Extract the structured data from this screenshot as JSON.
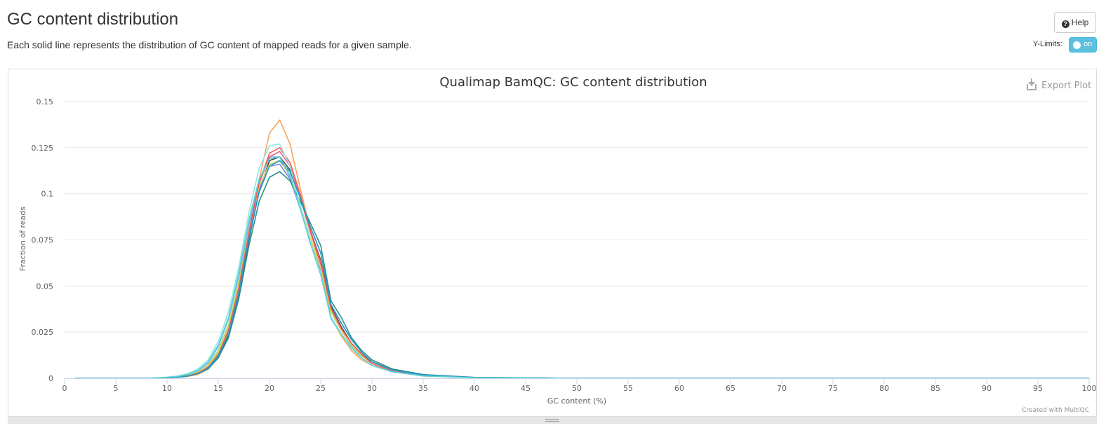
{
  "header": {
    "title": "GC content distribution",
    "subtitle": "Each solid line represents the distribution of GC content of mapped reads for a given sample.",
    "help_label": "Help",
    "ylimits_label": "Y-Limits:",
    "toggle_label": "on"
  },
  "plot": {
    "export_label": "Export Plot",
    "credit": "Created with MultiQC"
  },
  "chart_data": {
    "type": "line",
    "title": "Qualimap BamQC: GC content distribution",
    "xlabel": "GC content (%)",
    "ylabel": "Fraction of reads",
    "xlim": [
      0,
      100
    ],
    "ylim": [
      0,
      0.15
    ],
    "xticks": [
      0,
      5,
      10,
      15,
      20,
      25,
      30,
      35,
      40,
      45,
      50,
      55,
      60,
      65,
      70,
      75,
      80,
      85,
      90,
      95,
      100
    ],
    "yticks": [
      0,
      0.025,
      0.05,
      0.075,
      0.1,
      0.125,
      0.15
    ],
    "ytick_labels": [
      "0",
      "0.025",
      "0.05",
      "0.075",
      "0.1",
      "0.125",
      "0.15"
    ],
    "grid": true,
    "series": [
      {
        "color": "#f7a35c",
        "x": [
          1,
          8,
          10,
          11,
          12,
          13,
          14,
          15,
          16,
          17,
          18,
          19,
          20,
          21,
          22,
          23,
          24,
          25,
          26,
          27,
          28,
          29,
          30,
          32,
          35,
          40,
          50,
          70,
          100
        ],
        "y": [
          0,
          0,
          0.0003,
          0.0006,
          0.001,
          0.002,
          0.005,
          0.012,
          0.025,
          0.048,
          0.078,
          0.108,
          0.133,
          0.14,
          0.127,
          0.103,
          0.08,
          0.06,
          0.033,
          0.023,
          0.015,
          0.01,
          0.007,
          0.0035,
          0.0012,
          0.0003,
          0,
          0,
          0
        ]
      },
      {
        "color": "#7cb5ec",
        "x": [
          1,
          8,
          10,
          11,
          12,
          13,
          14,
          15,
          16,
          17,
          18,
          19,
          20,
          21,
          22,
          23,
          24,
          25,
          26,
          27,
          28,
          29,
          30,
          32,
          35,
          40,
          50,
          70,
          100
        ],
        "y": [
          0,
          0,
          0.0005,
          0.001,
          0.002,
          0.004,
          0.008,
          0.017,
          0.032,
          0.055,
          0.083,
          0.107,
          0.12,
          0.12,
          0.109,
          0.092,
          0.073,
          0.057,
          0.036,
          0.026,
          0.018,
          0.012,
          0.008,
          0.004,
          0.0015,
          0.0003,
          0,
          0,
          0
        ]
      },
      {
        "color": "#434348",
        "x": [
          1,
          8,
          10,
          11,
          12,
          13,
          14,
          15,
          16,
          17,
          18,
          19,
          20,
          21,
          22,
          23,
          24,
          25,
          26,
          27,
          28,
          29,
          30,
          32,
          35,
          40,
          50,
          70,
          100
        ],
        "y": [
          0,
          0,
          0.0003,
          0.0006,
          0.0012,
          0.0025,
          0.005,
          0.011,
          0.023,
          0.045,
          0.075,
          0.102,
          0.118,
          0.12,
          0.113,
          0.098,
          0.08,
          0.064,
          0.039,
          0.028,
          0.019,
          0.013,
          0.009,
          0.0045,
          0.0017,
          0.0004,
          0,
          0,
          0
        ]
      },
      {
        "color": "#90ed7d",
        "x": [
          1,
          8,
          10,
          11,
          12,
          13,
          14,
          15,
          16,
          17,
          18,
          19,
          20,
          21,
          22,
          23,
          24,
          25,
          26,
          27,
          28,
          29,
          30,
          32,
          35,
          40,
          50,
          70,
          100
        ],
        "y": [
          0,
          0,
          0.0004,
          0.0008,
          0.0016,
          0.0033,
          0.007,
          0.015,
          0.029,
          0.052,
          0.08,
          0.104,
          0.116,
          0.118,
          0.11,
          0.094,
          0.076,
          0.06,
          0.037,
          0.026,
          0.018,
          0.012,
          0.008,
          0.004,
          0.0015,
          0.0003,
          0,
          0,
          0
        ]
      },
      {
        "color": "#8085e9",
        "x": [
          1,
          8,
          10,
          11,
          12,
          13,
          14,
          15,
          16,
          17,
          18,
          19,
          20,
          21,
          22,
          23,
          24,
          25,
          26,
          27,
          28,
          29,
          30,
          32,
          35,
          40,
          50,
          70,
          100
        ],
        "y": [
          0,
          0,
          0.0004,
          0.0008,
          0.0015,
          0.003,
          0.0065,
          0.014,
          0.028,
          0.05,
          0.079,
          0.103,
          0.115,
          0.116,
          0.108,
          0.092,
          0.074,
          0.059,
          0.036,
          0.026,
          0.018,
          0.012,
          0.008,
          0.004,
          0.0015,
          0.0003,
          0,
          0,
          0
        ]
      },
      {
        "color": "#f15c80",
        "x": [
          1,
          8,
          10,
          11,
          12,
          13,
          14,
          15,
          16,
          17,
          18,
          19,
          20,
          21,
          22,
          23,
          24,
          25,
          26,
          27,
          28,
          29,
          30,
          32,
          35,
          40,
          50,
          70,
          100
        ],
        "y": [
          0,
          0,
          0.0003,
          0.0007,
          0.0014,
          0.003,
          0.006,
          0.013,
          0.027,
          0.05,
          0.08,
          0.106,
          0.12,
          0.123,
          0.115,
          0.098,
          0.079,
          0.062,
          0.038,
          0.027,
          0.019,
          0.013,
          0.008,
          0.004,
          0.0016,
          0.0003,
          0,
          0,
          0
        ]
      },
      {
        "color": "#e4d354",
        "x": [
          1,
          8,
          10,
          11,
          12,
          13,
          14,
          15,
          16,
          17,
          18,
          19,
          20,
          21,
          22,
          23,
          24,
          25,
          26,
          27,
          28,
          29,
          30,
          32,
          35,
          40,
          50,
          70,
          100
        ],
        "y": [
          0,
          0,
          0.0004,
          0.0008,
          0.0016,
          0.0032,
          0.0068,
          0.014,
          0.028,
          0.051,
          0.08,
          0.104,
          0.116,
          0.118,
          0.11,
          0.094,
          0.075,
          0.06,
          0.036,
          0.026,
          0.018,
          0.012,
          0.008,
          0.004,
          0.0015,
          0.0003,
          0,
          0,
          0
        ]
      },
      {
        "color": "#2b908f",
        "x": [
          1,
          8,
          10,
          11,
          12,
          13,
          14,
          15,
          16,
          17,
          18,
          19,
          20,
          21,
          22,
          23,
          24,
          25,
          26,
          27,
          28,
          29,
          30,
          32,
          35,
          40,
          50,
          70,
          100
        ],
        "y": [
          0,
          0,
          0.0003,
          0.0006,
          0.0012,
          0.0025,
          0.005,
          0.011,
          0.022,
          0.043,
          0.072,
          0.096,
          0.109,
          0.112,
          0.107,
          0.096,
          0.084,
          0.072,
          0.042,
          0.033,
          0.022,
          0.015,
          0.01,
          0.005,
          0.002,
          0.0005,
          0,
          0,
          0
        ]
      },
      {
        "color": "#f45b5b",
        "x": [
          1,
          8,
          10,
          11,
          12,
          13,
          14,
          15,
          16,
          17,
          18,
          19,
          20,
          21,
          22,
          23,
          24,
          25,
          26,
          27,
          28,
          29,
          30,
          32,
          35,
          40,
          50,
          70,
          100
        ],
        "y": [
          0,
          0,
          0.0003,
          0.0006,
          0.0013,
          0.0028,
          0.0058,
          0.0125,
          0.026,
          0.049,
          0.079,
          0.106,
          0.122,
          0.125,
          0.117,
          0.1,
          0.08,
          0.063,
          0.038,
          0.027,
          0.019,
          0.013,
          0.008,
          0.004,
          0.0016,
          0.0003,
          0,
          0,
          0
        ]
      },
      {
        "color": "#91e8e1",
        "x": [
          1,
          8,
          10,
          11,
          12,
          13,
          14,
          15,
          16,
          17,
          18,
          19,
          20,
          21,
          22,
          23,
          24,
          25,
          26,
          27,
          28,
          29,
          30,
          32,
          35,
          40,
          50,
          70,
          100
        ],
        "y": [
          0,
          0,
          0.0006,
          0.0012,
          0.0025,
          0.005,
          0.01,
          0.02,
          0.036,
          0.06,
          0.09,
          0.114,
          0.126,
          0.127,
          0.115,
          0.094,
          0.074,
          0.057,
          0.032,
          0.024,
          0.016,
          0.011,
          0.007,
          0.0035,
          0.0013,
          0.0003,
          0,
          0,
          0
        ]
      },
      {
        "color": "#1f9ac9",
        "x": [
          1,
          8,
          10,
          11,
          12,
          13,
          14,
          15,
          16,
          17,
          18,
          19,
          20,
          21,
          22,
          23,
          24,
          25,
          26,
          27,
          28,
          29,
          30,
          32,
          35,
          40,
          50,
          70,
          100
        ],
        "y": [
          0,
          0,
          0.0003,
          0.0006,
          0.0012,
          0.0026,
          0.0054,
          0.012,
          0.024,
          0.046,
          0.076,
          0.101,
          0.115,
          0.118,
          0.112,
          0.098,
          0.082,
          0.068,
          0.04,
          0.03,
          0.021,
          0.014,
          0.009,
          0.0045,
          0.0018,
          0.0004,
          0,
          0,
          0
        ]
      },
      {
        "color": "#5bd0d8",
        "x": [
          1,
          8,
          10,
          11,
          12,
          13,
          14,
          15,
          16,
          17,
          18,
          19,
          20,
          21,
          22,
          23,
          24,
          25,
          26,
          27,
          28,
          29,
          30,
          32,
          35,
          40,
          50,
          70,
          100
        ],
        "y": [
          0,
          0,
          0.0005,
          0.001,
          0.0021,
          0.0042,
          0.0088,
          0.018,
          0.033,
          0.057,
          0.086,
          0.108,
          0.119,
          0.12,
          0.11,
          0.092,
          0.073,
          0.056,
          0.033,
          0.024,
          0.017,
          0.011,
          0.007,
          0.0035,
          0.0013,
          0.0003,
          0,
          0,
          0
        ]
      }
    ]
  }
}
